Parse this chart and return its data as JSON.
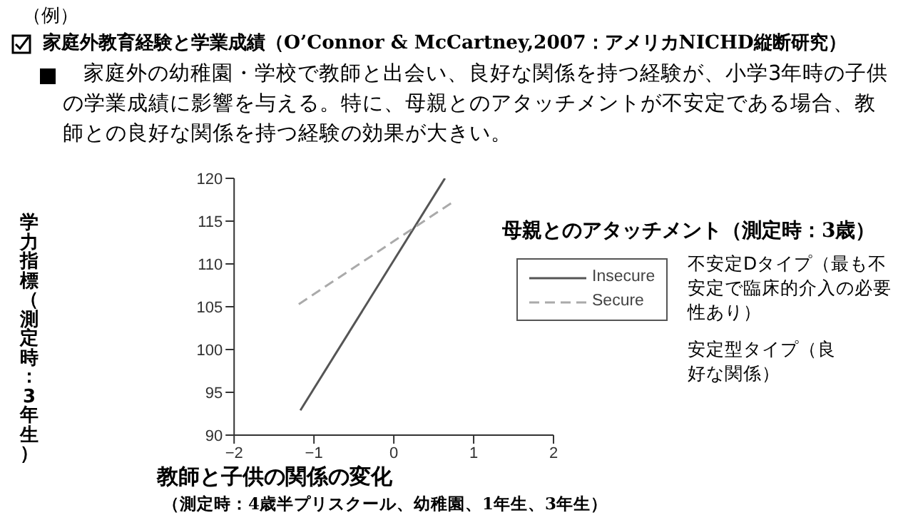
{
  "chart_data": {
    "type": "line",
    "title": "家庭外教育経験と学業成績（O’Connor & McCartney,2007：アメリカNICHD縦断研究）",
    "subtitle": "家庭外の幼稚園・学校で教師と出会い、良好な関係を持つ経験が、小学3年時の子供の学業成績に影響を与える。特に、母親とのアタッチメントが不安定である場合、教師との良好な関係を持つ経験の効果が大きい。",
    "xlabel": "教師と子供の関係の変化",
    "ylabel": "学力指標（測定時：3年生）",
    "legend_title": "母親とのアタッチメント（測定時：3歳）",
    "annotations": [
      "（例）",
      "（測定時：4歳半プリスクール、幼稚園、1年生、3年生）",
      "不安定Dタイプ（最も不安定で臨床的介入の必要性あり）",
      "安定型タイプ（良好な関係）"
    ],
    "series": [
      {
        "name": "Insecure",
        "color": "#555555",
        "line_style": "solid",
        "x": [
          -1.17,
          0.64
        ],
        "values": [
          92.9,
          120
        ]
      },
      {
        "name": "Secure",
        "color": "#aaaaaa",
        "line_style": "dashed",
        "x": [
          -1.19,
          0.75
        ],
        "values": [
          105.3,
          117.3
        ]
      }
    ],
    "xlim": [
      -2,
      2
    ],
    "xticks": [
      -2,
      -1,
      0,
      1,
      2
    ],
    "ylim": [
      90,
      120
    ],
    "yticks": [
      90,
      95,
      100,
      105,
      110,
      115,
      120
    ],
    "grid": false,
    "legend": "right",
    "marker": "none"
  }
}
